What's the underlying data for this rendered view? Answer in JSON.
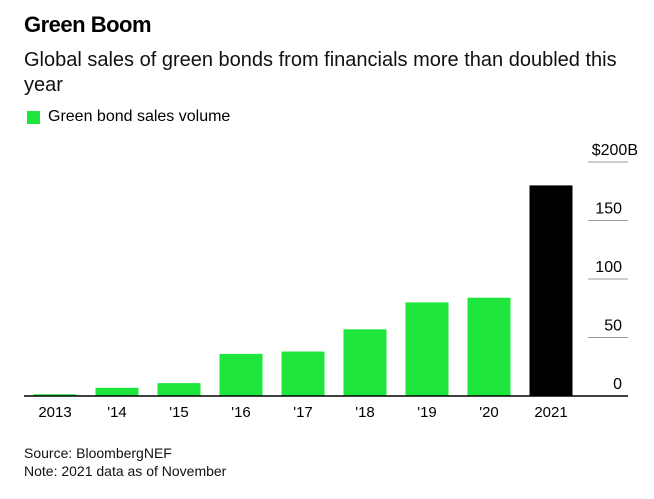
{
  "title": "Green Boom",
  "subtitle": "Global sales of green bonds from financials more than doubled this year",
  "legend": {
    "label": "Green bond sales volume",
    "color": "#1ee63c"
  },
  "source": "Source: BloombergNEF",
  "note": "Note: 2021 data as of November",
  "colors": {
    "bar": "#1ee63c",
    "highlight": "#000000",
    "axis": "#000000",
    "grid": "#9a9a9a"
  },
  "chart_data": {
    "type": "bar",
    "categories": [
      "2013",
      "'14",
      "'15",
      "'16",
      "'17",
      "'18",
      "'19",
      "'20",
      "2021"
    ],
    "values": [
      1.5,
      7,
      11,
      36,
      38,
      57,
      80,
      84,
      180
    ],
    "highlight_index": 8,
    "title": "Green Boom",
    "xlabel": "",
    "ylabel": "",
    "ylim": [
      0,
      200
    ],
    "yticks": [
      0,
      50,
      100,
      150,
      200
    ],
    "ytick_labels": [
      "0",
      "50",
      "100",
      "150",
      "$200B"
    ],
    "y_axis_position": "right",
    "grid": false,
    "legend_position": "top-left"
  }
}
